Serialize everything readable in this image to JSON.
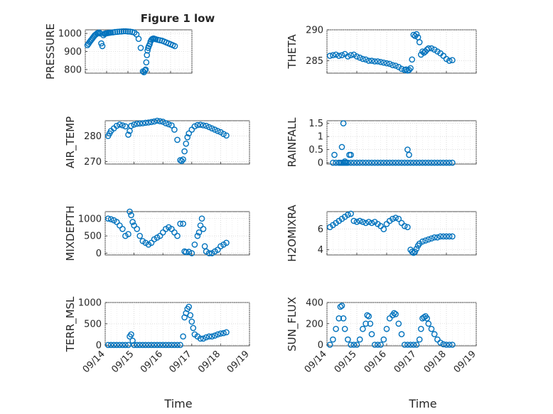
{
  "title": "Figure 1 low",
  "xlabel_left": "Time",
  "xlabel_right": "Time",
  "colors": {
    "marker": "#0072BD",
    "axis": "#262626",
    "grid": "#c8c8c8"
  },
  "x_ticks": [
    "09/14",
    "09/15",
    "09/16",
    "09/17",
    "09/18",
    "09/19"
  ],
  "chart_data": [
    {
      "type": "scatter",
      "ylabel": "PRESSURE",
      "ylim": [
        780,
        1020
      ],
      "yticks": [
        800,
        900,
        1000
      ],
      "xlim": [
        0,
        5
      ],
      "grid": true,
      "x": [
        0.1,
        0.15,
        0.2,
        0.25,
        0.3,
        0.35,
        0.4,
        0.45,
        0.5,
        0.55,
        0.6,
        0.65,
        0.7,
        0.75,
        0.8,
        0.85,
        0.9,
        0.95,
        1.0,
        1.05,
        1.1,
        1.15,
        1.2,
        1.3,
        1.4,
        1.5,
        1.6,
        1.7,
        1.8,
        1.9,
        2.0,
        2.1,
        2.2,
        2.3,
        2.4,
        2.5,
        2.6,
        2.7,
        2.75,
        2.8,
        2.83,
        2.86,
        2.89,
        2.92,
        2.95,
        2.98,
        3.02,
        3.06,
        3.1,
        3.15,
        3.2,
        3.25,
        3.3,
        3.4,
        3.5,
        3.6,
        3.7,
        3.8,
        3.9,
        4.0,
        4.1,
        4.2
      ],
      "y": [
        935,
        943,
        952,
        960,
        967,
        975,
        983,
        990,
        995,
        1000,
        1003,
        1005,
        1000,
        945,
        930,
        990,
        998,
        1000,
        1001,
        1002,
        1003,
        1004,
        1005,
        1006,
        1008,
        1009,
        1010,
        1011,
        1012,
        1012,
        1011,
        1010,
        1008,
        1005,
        995,
        970,
        920,
        790,
        785,
        795,
        800,
        840,
        880,
        905,
        920,
        930,
        940,
        955,
        965,
        970,
        972,
        970,
        968,
        965,
        962,
        960,
        955,
        950,
        945,
        940,
        935,
        930
      ]
    },
    {
      "type": "scatter",
      "ylabel": "THETA",
      "ylim": [
        283,
        290
      ],
      "yticks": [
        285,
        290
      ],
      "xlim": [
        0,
        5
      ],
      "grid": true,
      "x": [
        0.1,
        0.2,
        0.3,
        0.4,
        0.5,
        0.6,
        0.7,
        0.8,
        0.9,
        1.0,
        1.1,
        1.2,
        1.3,
        1.4,
        1.5,
        1.6,
        1.7,
        1.8,
        1.9,
        2.0,
        2.1,
        2.2,
        2.3,
        2.4,
        2.5,
        2.6,
        2.65,
        2.7,
        2.75,
        2.8,
        2.85,
        2.9,
        2.95,
        3.0,
        3.05,
        3.1,
        3.15,
        3.2,
        3.25,
        3.3,
        3.35,
        3.4,
        3.5,
        3.6,
        3.7,
        3.8,
        3.9,
        4.0,
        4.1,
        4.2
      ],
      "y": [
        285.8,
        285.9,
        286.0,
        285.8,
        285.9,
        286.1,
        285.7,
        285.9,
        286.0,
        285.7,
        285.5,
        285.3,
        285.2,
        285.0,
        285.0,
        284.9,
        284.9,
        284.8,
        284.7,
        284.6,
        284.5,
        284.3,
        284.2,
        284.0,
        283.7,
        283.5,
        283.6,
        283.4,
        283.5,
        283.8,
        285.2,
        289.2,
        289.0,
        289.3,
        288.8,
        288.0,
        286.0,
        286.5,
        286.3,
        286.5,
        286.8,
        287.0,
        287.0,
        286.8,
        286.5,
        286.2,
        285.8,
        285.3,
        285.0,
        285.1
      ]
    },
    {
      "type": "scatter",
      "ylabel": "AIR_TEMP",
      "ylim": [
        269,
        286
      ],
      "yticks": [
        270,
        280
      ],
      "xlim": [
        0,
        5
      ],
      "grid": true,
      "x": [
        0.1,
        0.15,
        0.2,
        0.3,
        0.4,
        0.5,
        0.6,
        0.7,
        0.8,
        0.85,
        0.9,
        1.0,
        1.1,
        1.2,
        1.3,
        1.4,
        1.5,
        1.6,
        1.7,
        1.8,
        1.9,
        2.0,
        2.1,
        2.2,
        2.3,
        2.4,
        2.5,
        2.6,
        2.65,
        2.7,
        2.75,
        2.8,
        2.85,
        2.9,
        3.0,
        3.1,
        3.2,
        3.3,
        3.4,
        3.5,
        3.6,
        3.7,
        3.8,
        3.9,
        4.0,
        4.1,
        4.2
      ],
      "y": [
        280.0,
        281.0,
        282.0,
        283.0,
        284.0,
        284.5,
        284.2,
        283.8,
        280.5,
        282.0,
        284.0,
        284.5,
        284.8,
        284.9,
        285.0,
        285.2,
        285.3,
        285.5,
        285.7,
        286.0,
        285.8,
        285.6,
        285.0,
        284.6,
        284.2,
        282.5,
        278.5,
        270.5,
        270.2,
        270.8,
        274.0,
        277.0,
        279.5,
        281.0,
        282.5,
        283.8,
        284.3,
        284.4,
        284.2,
        284.0,
        283.5,
        283.0,
        282.5,
        282.0,
        281.5,
        280.8,
        280.2
      ]
    },
    {
      "type": "scatter",
      "ylabel": "RAINFALL",
      "ylim": [
        -0.05,
        1.6
      ],
      "yticks": [
        0,
        0.5,
        1,
        1.5
      ],
      "xlim": [
        0,
        5
      ],
      "grid": true,
      "x": [
        0.2,
        0.3,
        0.4,
        0.45,
        0.5,
        0.55,
        0.6,
        0.65,
        0.7,
        0.8,
        0.9,
        1.0,
        1.1,
        1.2,
        1.3,
        1.4,
        1.5,
        1.6,
        1.7,
        1.8,
        1.9,
        2.0,
        2.1,
        2.2,
        2.3,
        2.4,
        2.5,
        2.6,
        2.7,
        2.8,
        2.9,
        3.0,
        3.1,
        3.2,
        3.3,
        3.4,
        3.5,
        3.6,
        3.7,
        3.8,
        3.9,
        4.0,
        4.1,
        4.2,
        0.25,
        0.5,
        0.55,
        0.6,
        0.75,
        0.8,
        2.7,
        2.75
      ],
      "y": [
        0,
        0,
        0,
        0,
        0,
        0,
        0,
        0,
        0,
        0,
        0,
        0,
        0,
        0,
        0,
        0,
        0,
        0,
        0,
        0,
        0,
        0,
        0,
        0,
        0,
        0,
        0,
        0,
        0,
        0,
        0,
        0,
        0,
        0,
        0,
        0,
        0,
        0,
        0,
        0,
        0,
        0,
        0,
        0,
        0.3,
        0.6,
        1.5,
        0.05,
        0.3,
        0.3,
        0.5,
        0.3
      ]
    },
    {
      "type": "scatter",
      "ylabel": "MIXDEPTH",
      "ylim": [
        -50,
        1200
      ],
      "yticks": [
        0,
        500,
        1000
      ],
      "xlim": [
        0,
        5
      ],
      "grid": true,
      "x": [
        0.1,
        0.2,
        0.3,
        0.4,
        0.5,
        0.6,
        0.7,
        0.8,
        0.85,
        0.9,
        0.95,
        1.0,
        1.1,
        1.2,
        1.3,
        1.4,
        1.5,
        1.6,
        1.7,
        1.8,
        1.9,
        2.0,
        2.1,
        2.2,
        2.3,
        2.4,
        2.5,
        2.6,
        2.7,
        2.75,
        2.8,
        2.9,
        3.0,
        3.1,
        3.2,
        3.25,
        3.3,
        3.35,
        3.4,
        3.45,
        3.5,
        3.6,
        3.7,
        3.8,
        3.9,
        4.0,
        4.1,
        4.2
      ],
      "y": [
        1000,
        980,
        950,
        900,
        800,
        700,
        500,
        550,
        1200,
        1100,
        900,
        800,
        700,
        500,
        350,
        300,
        250,
        300,
        400,
        450,
        500,
        600,
        700,
        750,
        700,
        600,
        500,
        850,
        850,
        50,
        30,
        40,
        0,
        250,
        500,
        600,
        800,
        1000,
        700,
        200,
        50,
        0,
        0,
        50,
        100,
        200,
        250,
        300
      ]
    },
    {
      "type": "scatter",
      "ylabel": "H2OMIXRA",
      "ylim": [
        3.5,
        7.7
      ],
      "yticks": [
        4,
        6
      ],
      "xlim": [
        0,
        5
      ],
      "grid": true,
      "x": [
        0.1,
        0.2,
        0.3,
        0.4,
        0.5,
        0.6,
        0.7,
        0.8,
        0.9,
        1.0,
        1.1,
        1.2,
        1.3,
        1.4,
        1.5,
        1.6,
        1.7,
        1.8,
        1.9,
        2.0,
        2.1,
        2.2,
        2.3,
        2.4,
        2.5,
        2.6,
        2.7,
        2.8,
        2.85,
        2.9,
        2.95,
        3.0,
        3.05,
        3.1,
        3.2,
        3.3,
        3.4,
        3.5,
        3.6,
        3.7,
        3.8,
        3.9,
        4.0,
        4.1,
        4.2
      ],
      "y": [
        6.2,
        6.4,
        6.6,
        6.8,
        7.0,
        7.2,
        7.4,
        7.5,
        6.8,
        6.7,
        6.8,
        6.7,
        6.6,
        6.7,
        6.6,
        6.7,
        6.5,
        6.3,
        6.0,
        6.5,
        6.8,
        7.0,
        7.1,
        7.0,
        6.6,
        6.3,
        6.2,
        4.0,
        3.8,
        3.7,
        3.8,
        4.1,
        4.4,
        4.6,
        4.8,
        4.9,
        5.0,
        5.1,
        5.2,
        5.2,
        5.3,
        5.3,
        5.3,
        5.3,
        5.3
      ]
    },
    {
      "type": "scatter",
      "ylabel": "TERR_MSL",
      "ylim": [
        -20,
        1000
      ],
      "yticks": [
        0,
        500,
        1000
      ],
      "xlim": [
        0,
        5
      ],
      "grid": true,
      "x": [
        0.1,
        0.2,
        0.3,
        0.4,
        0.5,
        0.6,
        0.7,
        0.8,
        0.85,
        0.9,
        0.95,
        1.0,
        1.1,
        1.2,
        1.3,
        1.4,
        1.5,
        1.6,
        1.7,
        1.8,
        1.9,
        2.0,
        2.1,
        2.2,
        2.3,
        2.4,
        2.5,
        2.6,
        2.7,
        2.75,
        2.8,
        2.85,
        2.9,
        2.95,
        3.0,
        3.05,
        3.1,
        3.2,
        3.3,
        3.4,
        3.5,
        3.6,
        3.7,
        3.8,
        3.9,
        4.0,
        4.1,
        4.2
      ],
      "y": [
        0,
        0,
        0,
        0,
        0,
        0,
        0,
        0,
        200,
        250,
        100,
        0,
        0,
        0,
        0,
        0,
        0,
        0,
        0,
        0,
        0,
        0,
        0,
        0,
        0,
        0,
        0,
        0,
        200,
        650,
        750,
        850,
        900,
        700,
        550,
        400,
        250,
        200,
        150,
        150,
        180,
        200,
        200,
        220,
        250,
        270,
        280,
        300
      ]
    },
    {
      "type": "scatter",
      "ylabel": "SUN_FLUX",
      "ylim": [
        -10,
        400
      ],
      "yticks": [
        0,
        200,
        400
      ],
      "xlim": [
        0,
        5
      ],
      "grid": true,
      "x": [
        0.1,
        0.2,
        0.3,
        0.4,
        0.45,
        0.5,
        0.55,
        0.6,
        0.7,
        0.8,
        0.9,
        1.0,
        1.1,
        1.2,
        1.3,
        1.35,
        1.4,
        1.45,
        1.5,
        1.6,
        1.7,
        1.8,
        1.9,
        2.0,
        2.1,
        2.2,
        2.25,
        2.3,
        2.4,
        2.5,
        2.6,
        2.7,
        2.8,
        2.9,
        3.0,
        3.1,
        3.15,
        3.2,
        3.25,
        3.3,
        3.35,
        3.4,
        3.5,
        3.6,
        3.7,
        3.8,
        3.9,
        4.0,
        4.1,
        4.2
      ],
      "y": [
        0,
        50,
        150,
        250,
        360,
        370,
        250,
        150,
        50,
        0,
        0,
        0,
        50,
        150,
        200,
        280,
        270,
        200,
        100,
        0,
        0,
        0,
        50,
        150,
        250,
        280,
        300,
        290,
        200,
        100,
        0,
        0,
        0,
        0,
        0,
        50,
        150,
        250,
        260,
        270,
        250,
        200,
        150,
        100,
        50,
        20,
        5,
        0,
        0,
        0
      ]
    }
  ]
}
